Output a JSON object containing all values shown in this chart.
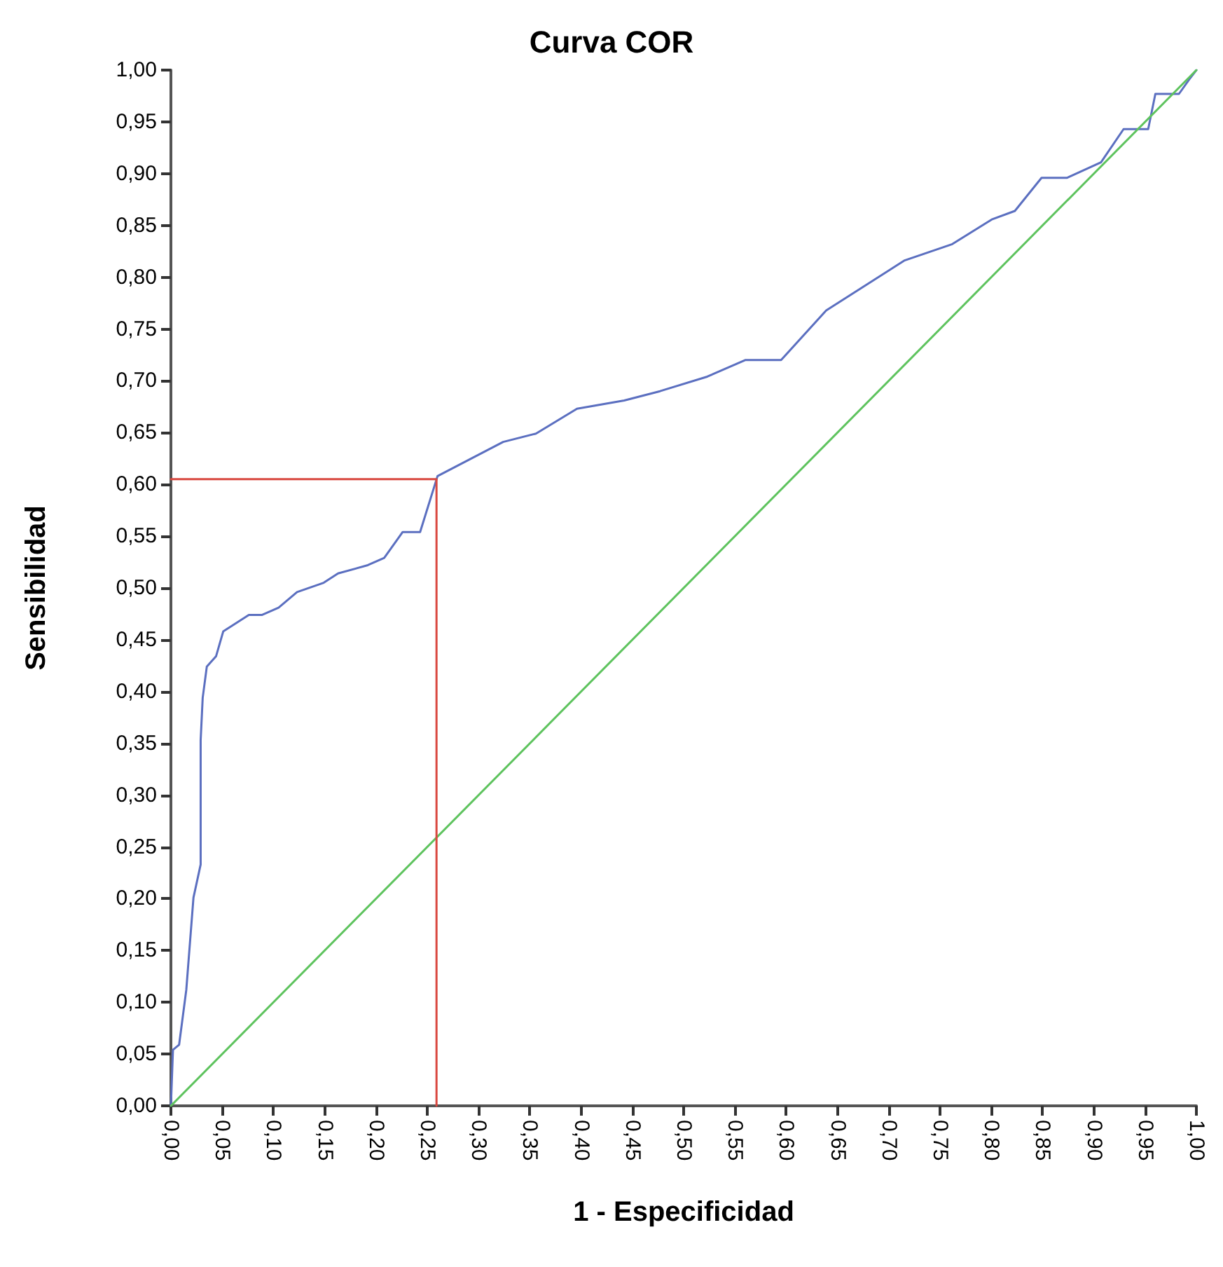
{
  "chart_data": {
    "type": "line",
    "title": "Curva COR",
    "xlabel": "1 - Especificidad",
    "ylabel": "Sensibilidad",
    "xlim": [
      0,
      1
    ],
    "ylim": [
      0,
      1
    ],
    "marker": "none",
    "line_style": "solid",
    "xticks": [
      {
        "value": 0,
        "label": "0,00"
      },
      {
        "value": 0.05,
        "label": "0,05"
      },
      {
        "value": 0.1,
        "label": "0,10"
      },
      {
        "value": 0.15,
        "label": "0,15"
      },
      {
        "value": 0.2,
        "label": "0,20"
      },
      {
        "value": 0.25,
        "label": "0,25"
      },
      {
        "value": 0.3,
        "label": "0,30"
      },
      {
        "value": 0.35,
        "label": "0,35"
      },
      {
        "value": 0.4,
        "label": "0,40"
      },
      {
        "value": 0.45,
        "label": "0,45"
      },
      {
        "value": 0.5,
        "label": "0,50"
      },
      {
        "value": 0.55,
        "label": "0,55"
      },
      {
        "value": 0.6,
        "label": "0,60"
      },
      {
        "value": 0.65,
        "label": "0,65"
      },
      {
        "value": 0.7,
        "label": "0,70"
      },
      {
        "value": 0.75,
        "label": "0,75"
      },
      {
        "value": 0.8,
        "label": "0,80"
      },
      {
        "value": 0.85,
        "label": "0,85"
      },
      {
        "value": 0.9,
        "label": "0,90"
      },
      {
        "value": 0.95,
        "label": "0,95"
      },
      {
        "value": 1,
        "label": "1,00"
      }
    ],
    "yticks": [
      {
        "value": 0,
        "label": "0,00"
      },
      {
        "value": 0.05,
        "label": "0,05"
      },
      {
        "value": 0.1,
        "label": "0,10"
      },
      {
        "value": 0.15,
        "label": "0,15"
      },
      {
        "value": 0.2,
        "label": "0,20"
      },
      {
        "value": 0.25,
        "label": "0,25"
      },
      {
        "value": 0.3,
        "label": "0,30"
      },
      {
        "value": 0.35,
        "label": "0,35"
      },
      {
        "value": 0.4,
        "label": "0,40"
      },
      {
        "value": 0.45,
        "label": "0,45"
      },
      {
        "value": 0.5,
        "label": "0,50"
      },
      {
        "value": 0.55,
        "label": "0,55"
      },
      {
        "value": 0.6,
        "label": "0,60"
      },
      {
        "value": 0.65,
        "label": "0,65"
      },
      {
        "value": 0.7,
        "label": "0,70"
      },
      {
        "value": 0.75,
        "label": "0,75"
      },
      {
        "value": 0.8,
        "label": "0,80"
      },
      {
        "value": 0.85,
        "label": "0,85"
      },
      {
        "value": 0.9,
        "label": "0,90"
      },
      {
        "value": 0.95,
        "label": "0,95"
      },
      {
        "value": 1,
        "label": "1,00"
      }
    ],
    "series": [
      {
        "color": "#5b6fc0",
        "x": [
          0,
          0.002,
          0.008,
          0.015,
          0.022,
          0.029,
          0.029,
          0.031,
          0.035,
          0.044,
          0.051,
          0.076,
          0.089,
          0.105,
          0.123,
          0.149,
          0.163,
          0.192,
          0.208,
          0.226,
          0.243,
          0.26,
          0.324,
          0.356,
          0.396,
          0.442,
          0.477,
          0.523,
          0.56,
          0.595,
          0.639,
          0.715,
          0.762,
          0.801,
          0.823,
          0.849,
          0.874,
          0.907,
          0.929,
          0.953,
          0.96,
          0.983,
          0.993,
          1
        ],
        "values": [
          0,
          0.054,
          0.059,
          0.112,
          0.201,
          0.233,
          0.353,
          0.394,
          0.424,
          0.434,
          0.458,
          0.474,
          0.474,
          0.481,
          0.496,
          0.505,
          0.514,
          0.522,
          0.529,
          0.554,
          0.554,
          0.608,
          0.641,
          0.649,
          0.673,
          0.681,
          0.69,
          0.704,
          0.72,
          0.72,
          0.768,
          0.816,
          0.832,
          0.856,
          0.864,
          0.896,
          0.896,
          0.911,
          0.943,
          0.943,
          0.977,
          0.977,
          0.991,
          1
        ]
      },
      {
        "color": "#5ec35e",
        "x": [
          0,
          1
        ],
        "values": [
          0,
          1
        ]
      },
      {
        "color": "#d9473f",
        "x": [
          0,
          0.259,
          0.259
        ],
        "values": [
          0.605,
          0.605,
          0
        ]
      }
    ]
  }
}
